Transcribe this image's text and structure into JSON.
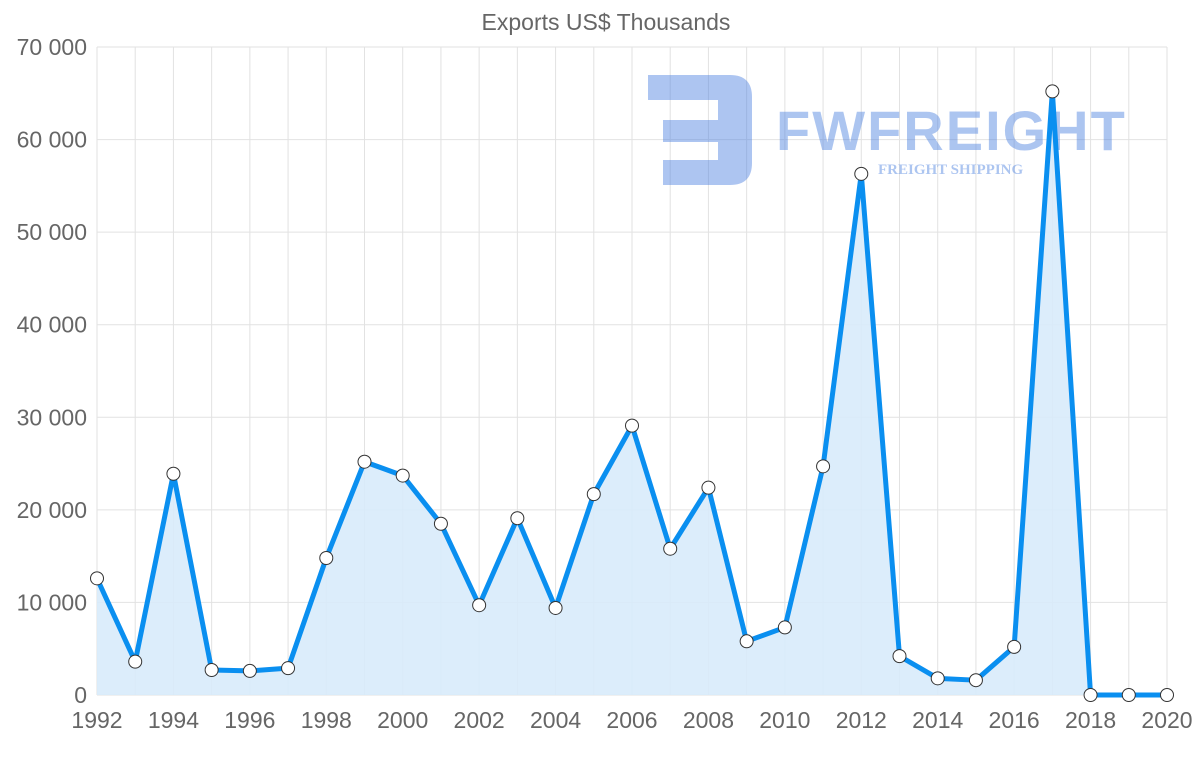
{
  "chart_data": {
    "type": "area",
    "title": "Exports US$ Thousands",
    "xlabel": "",
    "ylabel": "",
    "x": [
      1992,
      1993,
      1994,
      1995,
      1996,
      1997,
      1998,
      1999,
      2000,
      2001,
      2002,
      2003,
      2004,
      2005,
      2006,
      2007,
      2008,
      2009,
      2010,
      2011,
      2012,
      2013,
      2014,
      2015,
      2016,
      2017,
      2018,
      2019,
      2020
    ],
    "series": [
      {
        "name": "Exports US$ Thousands",
        "values": [
          12600,
          3600,
          23900,
          2700,
          2600,
          2900,
          14800,
          25200,
          23700,
          18500,
          9700,
          19100,
          9400,
          21700,
          29100,
          15800,
          22400,
          5800,
          7300,
          24700,
          56300,
          4200,
          1800,
          1600,
          5200,
          65200,
          0,
          0,
          0
        ]
      }
    ],
    "ylim": [
      0,
      70000
    ],
    "yticks": [
      0,
      10000,
      20000,
      30000,
      40000,
      50000,
      60000,
      70000
    ],
    "ytick_labels": [
      "0",
      "10 000",
      "20 000",
      "30 000",
      "40 000",
      "50 000",
      "60 000",
      "70 000"
    ],
    "xtick_labels": [
      "1992",
      "1994",
      "1996",
      "1998",
      "2000",
      "2002",
      "2004",
      "2006",
      "2008",
      "2010",
      "2012",
      "2014",
      "2016",
      "2018",
      "2020"
    ],
    "grid": true,
    "legend": "none",
    "colors": {
      "line": "#0a8ff0",
      "fill": "#d8ebfb",
      "grid": "#e2e2e2",
      "text": "#666666"
    }
  },
  "watermark": {
    "brand": "FWFREIGHT",
    "tagline": "FREIGHT SHIPPING"
  }
}
